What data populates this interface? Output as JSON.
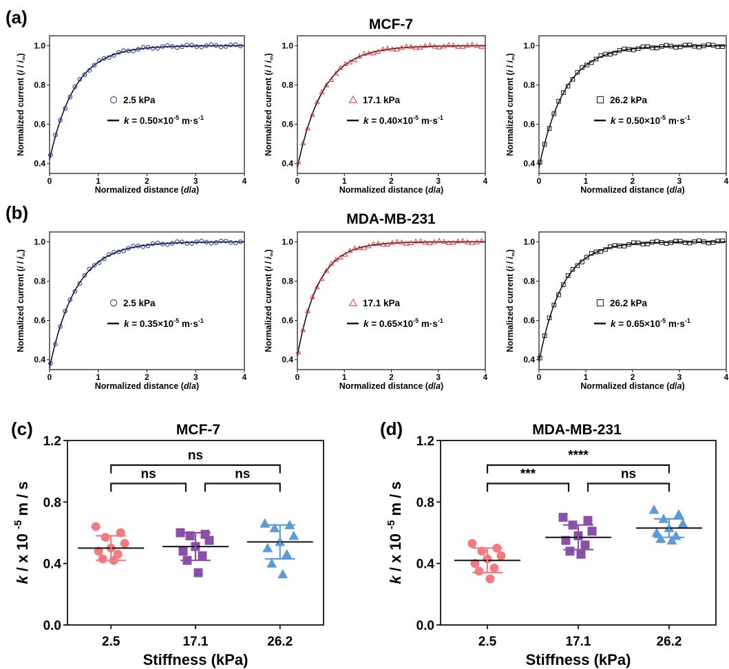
{
  "figure": {
    "panel_labels": [
      "(a)",
      "(b)",
      "(c)",
      "(d)"
    ],
    "colors": {
      "blue": "#2b3aa8",
      "red": "#e8464a",
      "black": "#111111",
      "pink": "#f07c80",
      "purple": "#8a4fa8",
      "skyblue": "#5b9bd6"
    }
  },
  "chart_data": [
    {
      "id": "a1",
      "type": "scatter",
      "group_title": "MCF-7",
      "ylabel": "Normalized current (i / i∞)",
      "xlabel": "Normalized distance (d/a)",
      "xlim": [
        0,
        4
      ],
      "ylim": [
        0.35,
        1.05
      ],
      "xticks": [
        "0",
        "1",
        "2",
        "3",
        "4"
      ],
      "yticks": [
        "0.4",
        "0.6",
        "0.8",
        "1.0"
      ],
      "marker": "circle",
      "color": "#2b3aa8",
      "series": [
        {
          "name": "2.5 kPa",
          "i0": 0.42,
          "tau": 0.52
        },
        {
          "name": "k = 0.50×10-5 m·s-1",
          "fit": true
        }
      ]
    },
    {
      "id": "a2",
      "type": "scatter",
      "ylabel": "Normalized current (i / i∞)",
      "xlabel": "Normalized distance (d/a)",
      "xlim": [
        0,
        4
      ],
      "ylim": [
        0.35,
        1.05
      ],
      "xticks": [
        "0",
        "1",
        "2",
        "3",
        "4"
      ],
      "yticks": [
        "0.4",
        "0.6",
        "0.8",
        "1.0"
      ],
      "marker": "triangle",
      "color": "#e8464a",
      "series": [
        {
          "name": "17.1 kPa",
          "i0": 0.38,
          "tau": 0.55
        },
        {
          "name": "k = 0.40×10-5 m·s-1",
          "fit": true
        }
      ]
    },
    {
      "id": "a3",
      "type": "scatter",
      "ylabel": "Normalized current (i / i∞)",
      "xlabel": "Normalized distance (d/a)",
      "xlim": [
        0,
        4
      ],
      "ylim": [
        0.35,
        1.05
      ],
      "xticks": [
        "0",
        "1",
        "2",
        "3",
        "4"
      ],
      "yticks": [
        "0.4",
        "0.6",
        "0.8",
        "1.0"
      ],
      "marker": "square",
      "color": "#111111",
      "series": [
        {
          "name": "26.2 kPa",
          "i0": 0.38,
          "tau": 0.55
        },
        {
          "name": "k = 0.50×10-5 m·s-1",
          "fit": true
        }
      ]
    },
    {
      "id": "b1",
      "type": "scatter",
      "group_title": "MDA-MB-231",
      "ylabel": "Normalized current (i / i∞)",
      "xlabel": "Normalized distance (d/a)",
      "xlim": [
        0,
        4
      ],
      "ylim": [
        0.35,
        1.05
      ],
      "xticks": [
        "0",
        "1",
        "2",
        "3",
        "4"
      ],
      "yticks": [
        "0.4",
        "0.6",
        "0.8",
        "1.0"
      ],
      "marker": "circle",
      "color": "#2b3aa8",
      "series": [
        {
          "name": "2.5 kPa",
          "i0": 0.36,
          "tau": 0.55
        },
        {
          "name": "k = 0.35×10-5 m·s-1",
          "fit": true
        }
      ]
    },
    {
      "id": "b2",
      "type": "scatter",
      "ylabel": "Normalized current (i / i∞)",
      "xlabel": "Normalized distance (d/a)",
      "xlim": [
        0,
        4
      ],
      "ylim": [
        0.35,
        1.05
      ],
      "xticks": [
        "0",
        "1",
        "2",
        "3",
        "4"
      ],
      "yticks": [
        "0.4",
        "0.6",
        "0.8",
        "1.0"
      ],
      "marker": "triangle",
      "color": "#e8464a",
      "series": [
        {
          "name": "17.1 kPa",
          "i0": 0.42,
          "tau": 0.45
        },
        {
          "name": "k = 0.65×10-5 m·s-1",
          "fit": true
        }
      ]
    },
    {
      "id": "b3",
      "type": "scatter",
      "ylabel": "Normalized current (i / i∞)",
      "xlabel": "Normalized distance (d/a)",
      "xlim": [
        0,
        4
      ],
      "ylim": [
        0.35,
        1.05
      ],
      "xticks": [
        "0",
        "1",
        "2",
        "3",
        "4"
      ],
      "yticks": [
        "0.4",
        "0.6",
        "0.8",
        "1.0"
      ],
      "marker": "square",
      "color": "#111111",
      "series": [
        {
          "name": "26.2 kPa",
          "i0": 0.39,
          "tau": 0.5
        },
        {
          "name": "k = 0.65×10-5 m·s-1",
          "fit": true
        }
      ]
    },
    {
      "id": "c",
      "type": "scatter",
      "title": "MCF-7",
      "ylabel": "k / x 10 -5 m / s",
      "xlabel": "Stiffness  (kPa)",
      "categories": [
        "2.5",
        "17.1",
        "26.2"
      ],
      "ylim": [
        0.0,
        1.2
      ],
      "yticks": [
        "0.0",
        "0.4",
        "0.8",
        "1.2"
      ],
      "series": [
        {
          "name": "2.5",
          "marker": "circle",
          "color": "#f07c80",
          "mean": 0.5,
          "sd": 0.08,
          "points": [
            0.64,
            0.6,
            0.57,
            0.53,
            0.5,
            0.48,
            0.46,
            0.43,
            0.42
          ]
        },
        {
          "name": "17.1",
          "marker": "square",
          "color": "#8a4fa8",
          "mean": 0.51,
          "sd": 0.09,
          "points": [
            0.6,
            0.59,
            0.58,
            0.55,
            0.51,
            0.48,
            0.45,
            0.42,
            0.34
          ]
        },
        {
          "name": "26.2",
          "marker": "triangle",
          "color": "#5b9bd6",
          "mean": 0.54,
          "sd": 0.11,
          "points": [
            0.66,
            0.65,
            0.63,
            0.58,
            0.54,
            0.5,
            0.46,
            0.4,
            0.33
          ]
        }
      ],
      "comparisons": [
        {
          "from": 0,
          "to": 2,
          "label": "ns",
          "level": 2
        },
        {
          "from": 0,
          "to": 1,
          "label": "ns",
          "level": 1
        },
        {
          "from": 1,
          "to": 2,
          "label": "ns",
          "level": 1
        }
      ]
    },
    {
      "id": "d",
      "type": "scatter",
      "title": "MDA-MB-231",
      "ylabel": "k / x 10 -5 m / s",
      "xlabel": "Stiffness  (kPa)",
      "categories": [
        "2.5",
        "17.1",
        "26.2"
      ],
      "ylim": [
        0.0,
        1.2
      ],
      "yticks": [
        "0.0",
        "0.4",
        "0.8",
        "1.2"
      ],
      "series": [
        {
          "name": "2.5",
          "marker": "circle",
          "color": "#f07c80",
          "mean": 0.42,
          "sd": 0.08,
          "points": [
            0.53,
            0.5,
            0.48,
            0.45,
            0.43,
            0.4,
            0.37,
            0.35,
            0.3
          ]
        },
        {
          "name": "17.1",
          "marker": "square",
          "color": "#8a4fa8",
          "mean": 0.57,
          "sd": 0.08,
          "points": [
            0.7,
            0.68,
            0.65,
            0.61,
            0.58,
            0.55,
            0.52,
            0.48,
            0.46
          ]
        },
        {
          "name": "26.2",
          "marker": "triangle",
          "color": "#5b9bd6",
          "mean": 0.63,
          "sd": 0.06,
          "points": [
            0.75,
            0.72,
            0.69,
            0.66,
            0.63,
            0.6,
            0.58,
            0.56,
            0.55
          ]
        }
      ],
      "comparisons": [
        {
          "from": 0,
          "to": 2,
          "label": "****",
          "level": 2
        },
        {
          "from": 0,
          "to": 1,
          "label": "***",
          "level": 1
        },
        {
          "from": 1,
          "to": 2,
          "label": "ns",
          "level": 1
        }
      ]
    }
  ]
}
